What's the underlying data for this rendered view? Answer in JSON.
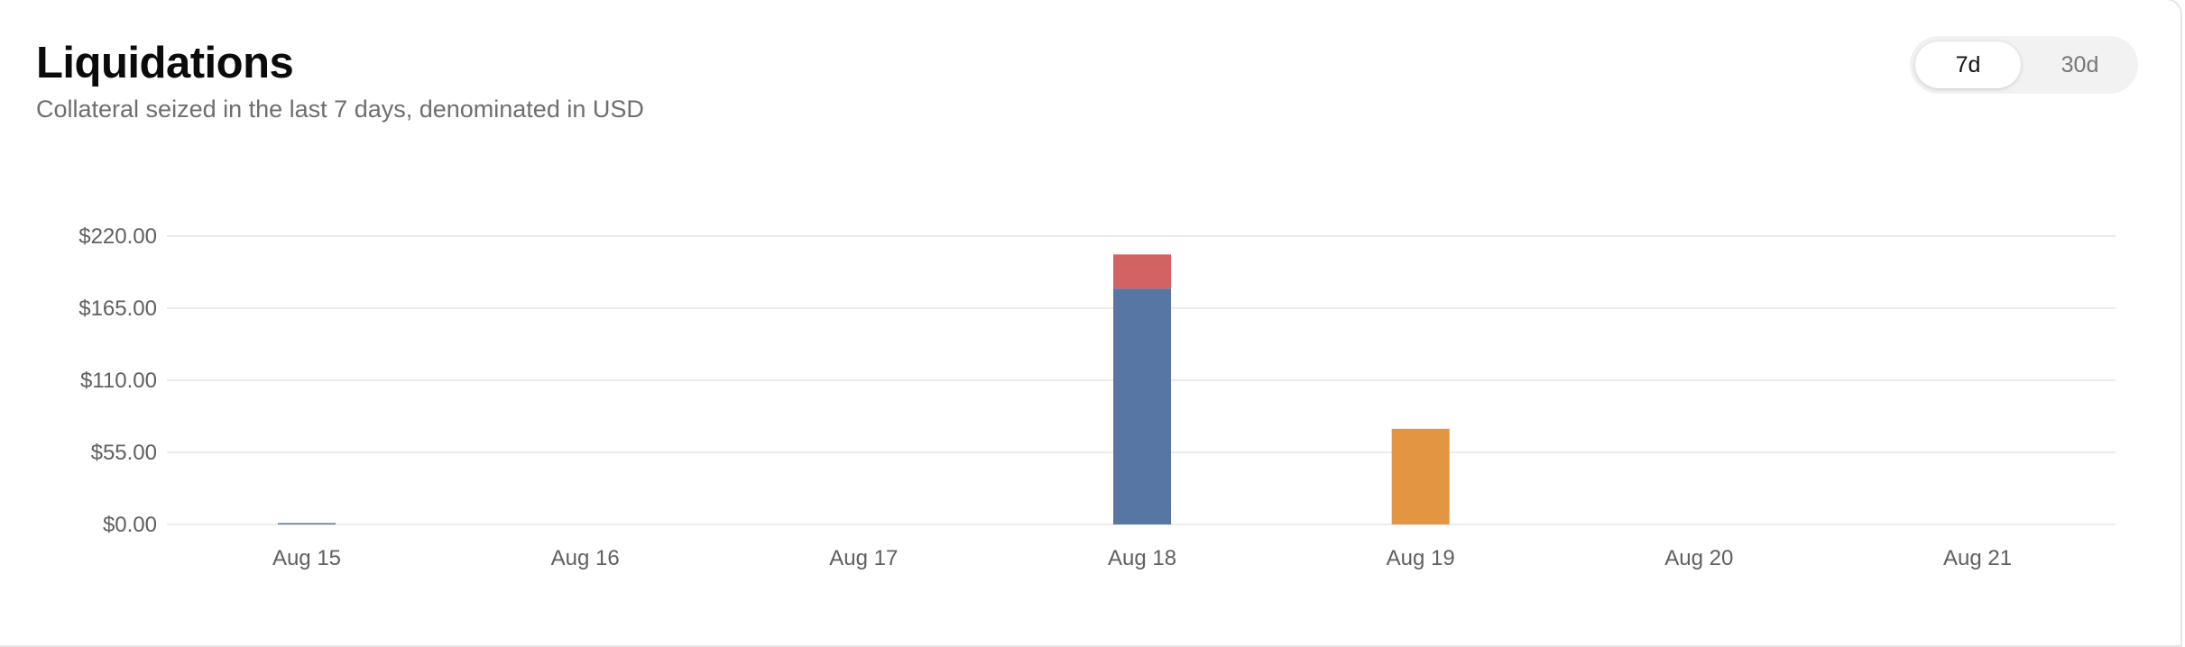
{
  "header": {
    "title": "Liquidations",
    "subtitle": "Collateral seized in the last 7 days, denominated in USD"
  },
  "range_toggle": {
    "options": [
      "7d",
      "30d"
    ],
    "selected": "7d"
  },
  "colors": {
    "blue": "#5876a4",
    "red": "#d36262",
    "orange": "#e39542",
    "grid": "#ececec",
    "tick_text": "#5f5f5f"
  },
  "chart_data": {
    "type": "bar",
    "stacked": true,
    "title": "",
    "xlabel": "",
    "ylabel": "",
    "categories": [
      "Aug 15",
      "Aug 16",
      "Aug 17",
      "Aug 18",
      "Aug 19",
      "Aug 20",
      "Aug 21"
    ],
    "y_ticks": [
      "$0.00",
      "$55.00",
      "$110.00",
      "$165.00",
      "$220.00"
    ],
    "ylim": [
      0,
      220
    ],
    "grid": true,
    "legend": "none",
    "series": [
      {
        "color": "#5876a4",
        "values": [
          0.3,
          0,
          0,
          180,
          0,
          0,
          0
        ]
      },
      {
        "color": "#d36262",
        "values": [
          0,
          0,
          0,
          26,
          0,
          0,
          0
        ]
      },
      {
        "color": "#e39542",
        "values": [
          0,
          0,
          0,
          0,
          73,
          0,
          0
        ]
      }
    ]
  }
}
